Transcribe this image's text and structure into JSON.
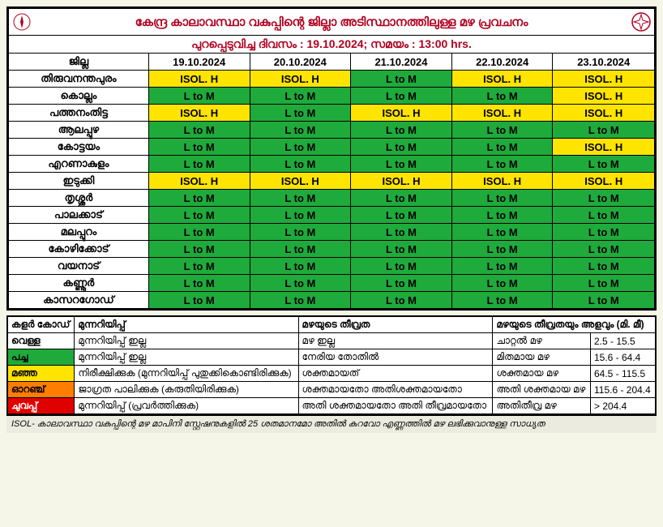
{
  "header": {
    "title_line1": "കേന്ദ്ര കാലാവസ്ഥാ വകുപ്പിന്റെ ജില്ലാ അടിസ്ഥാനത്തിലുള്ള മഴ പ്രവചനം",
    "title_line2_label": "പുറപ്പെടുവിച്ച ദിവസം :",
    "issue_date": "19.10.2024;",
    "time_label": "സമയം :",
    "issue_time": "13:00 hrs."
  },
  "columns": {
    "district_head": "ജില്ല",
    "dates": [
      "19.10.2024",
      "20.10.2024",
      "21.10.2024",
      "22.10.2024",
      "23.10.2024"
    ]
  },
  "status_labels": {
    "ltom": "L to M",
    "isolh": "ISOL. H"
  },
  "colors": {
    "green": "#1faa3c",
    "yellow": "#ffe400",
    "white": "#ffffff",
    "orange": "#ff7d00",
    "red": "#e10000"
  },
  "districts": [
    {
      "name": "തിരുവനന്തപുരം",
      "cells": [
        "isolh",
        "isolh",
        "ltom",
        "isolh",
        "isolh"
      ]
    },
    {
      "name": "കൊല്ലം",
      "cells": [
        "ltom",
        "ltom",
        "ltom",
        "ltom",
        "isolh"
      ]
    },
    {
      "name": "പത്തനംതിട്ട",
      "cells": [
        "isolh",
        "ltom",
        "isolh",
        "isolh",
        "isolh"
      ]
    },
    {
      "name": "ആലപ്പുഴ",
      "cells": [
        "ltom",
        "ltom",
        "ltom",
        "ltom",
        "ltom"
      ]
    },
    {
      "name": "കോട്ടയം",
      "cells": [
        "ltom",
        "ltom",
        "ltom",
        "ltom",
        "isolh"
      ]
    },
    {
      "name": "എറണാകുളം",
      "cells": [
        "ltom",
        "ltom",
        "ltom",
        "ltom",
        "ltom"
      ]
    },
    {
      "name": "ഇടുക്കി",
      "cells": [
        "isolh",
        "isolh",
        "isolh",
        "isolh",
        "isolh"
      ]
    },
    {
      "name": "തൃശ്ശൂർ",
      "cells": [
        "ltom",
        "ltom",
        "ltom",
        "ltom",
        "ltom"
      ]
    },
    {
      "name": "പാലക്കാട്",
      "cells": [
        "ltom",
        "ltom",
        "ltom",
        "ltom",
        "ltom"
      ]
    },
    {
      "name": "മലപ്പുറം",
      "cells": [
        "ltom",
        "ltom",
        "ltom",
        "ltom",
        "ltom"
      ]
    },
    {
      "name": "കോഴിക്കോട്",
      "cells": [
        "ltom",
        "ltom",
        "ltom",
        "ltom",
        "ltom"
      ]
    },
    {
      "name": "വയനാട്",
      "cells": [
        "ltom",
        "ltom",
        "ltom",
        "ltom",
        "ltom"
      ]
    },
    {
      "name": "കണ്ണൂർ",
      "cells": [
        "ltom",
        "ltom",
        "ltom",
        "ltom",
        "ltom"
      ]
    },
    {
      "name": "കാസറഗോഡ്",
      "cells": [
        "ltom",
        "ltom",
        "ltom",
        "ltom",
        "ltom"
      ]
    }
  ],
  "legend": {
    "heads": [
      "കളർ കോഡ്",
      "മുന്നറിയിപ്പ്",
      "മഴയുടെ തീവ്രത",
      "മഴയുടെ തീവ്രതയും അളവും (മി. മീ)"
    ],
    "rows": [
      {
        "color_name": "വെള്ള",
        "color_class": "cell-white",
        "warning": "മുന്നറിയിപ്പ് ഇല്ല",
        "intensity": "മഴ ഇല്ല",
        "cat": "ചാറ്റൽ മഴ",
        "range": "2.5 - 15.5"
      },
      {
        "color_name": "പച്ച",
        "color_class": "cell-green",
        "warning": "മുന്നറിയിപ്പ് ഇല്ല",
        "intensity": "നേരിയ തോതിൽ",
        "cat": "മിതമായ മഴ",
        "range": "15.6 - 64.4"
      },
      {
        "color_name": "മഞ്ഞ",
        "color_class": "cell-yellow",
        "warning": "നിരീക്ഷിക്കുക (മുന്നറിയിപ്പ് പുതുക്കികൊണ്ടിരിക്കുക)",
        "intensity": "ശക്തമായത്",
        "cat": "ശക്തമായ മഴ",
        "range": "64.5 - 115.5"
      },
      {
        "color_name": "ഓറഞ്ച്",
        "color_class": "cell-orange",
        "warning": "ജാഗ്രത പാലിക്കുക (കരുതിയിരിക്കുക)",
        "intensity": "ശക്തമായതോ അതിശക്തമായതോ",
        "cat": "അതി ശക്തമായ മഴ",
        "range": "115.6 - 204.4"
      },
      {
        "color_name": "ചുവപ്പ്",
        "color_class": "cell-red",
        "warning": "മുന്നറിയിപ്പ് (പ്രവർത്തിക്കുക)",
        "intensity": "അതി ശക്തമായതോ അതി തീവ്രമായതോ",
        "cat": "അതിതീവ്ര മഴ",
        "range": "> 204.4"
      }
    ]
  },
  "footer_note": "ISOL- കാലാവസ്ഥാ വകുപ്പിന്റെ മഴ മാപിനി സ്റ്റേഷനുകളിൽ 25 ശതമാനമോ അതിൽ കുറവോ എണ്ണത്തിൽ മഴ ലഭിക്കുവാനുള്ള സാധ്യത"
}
